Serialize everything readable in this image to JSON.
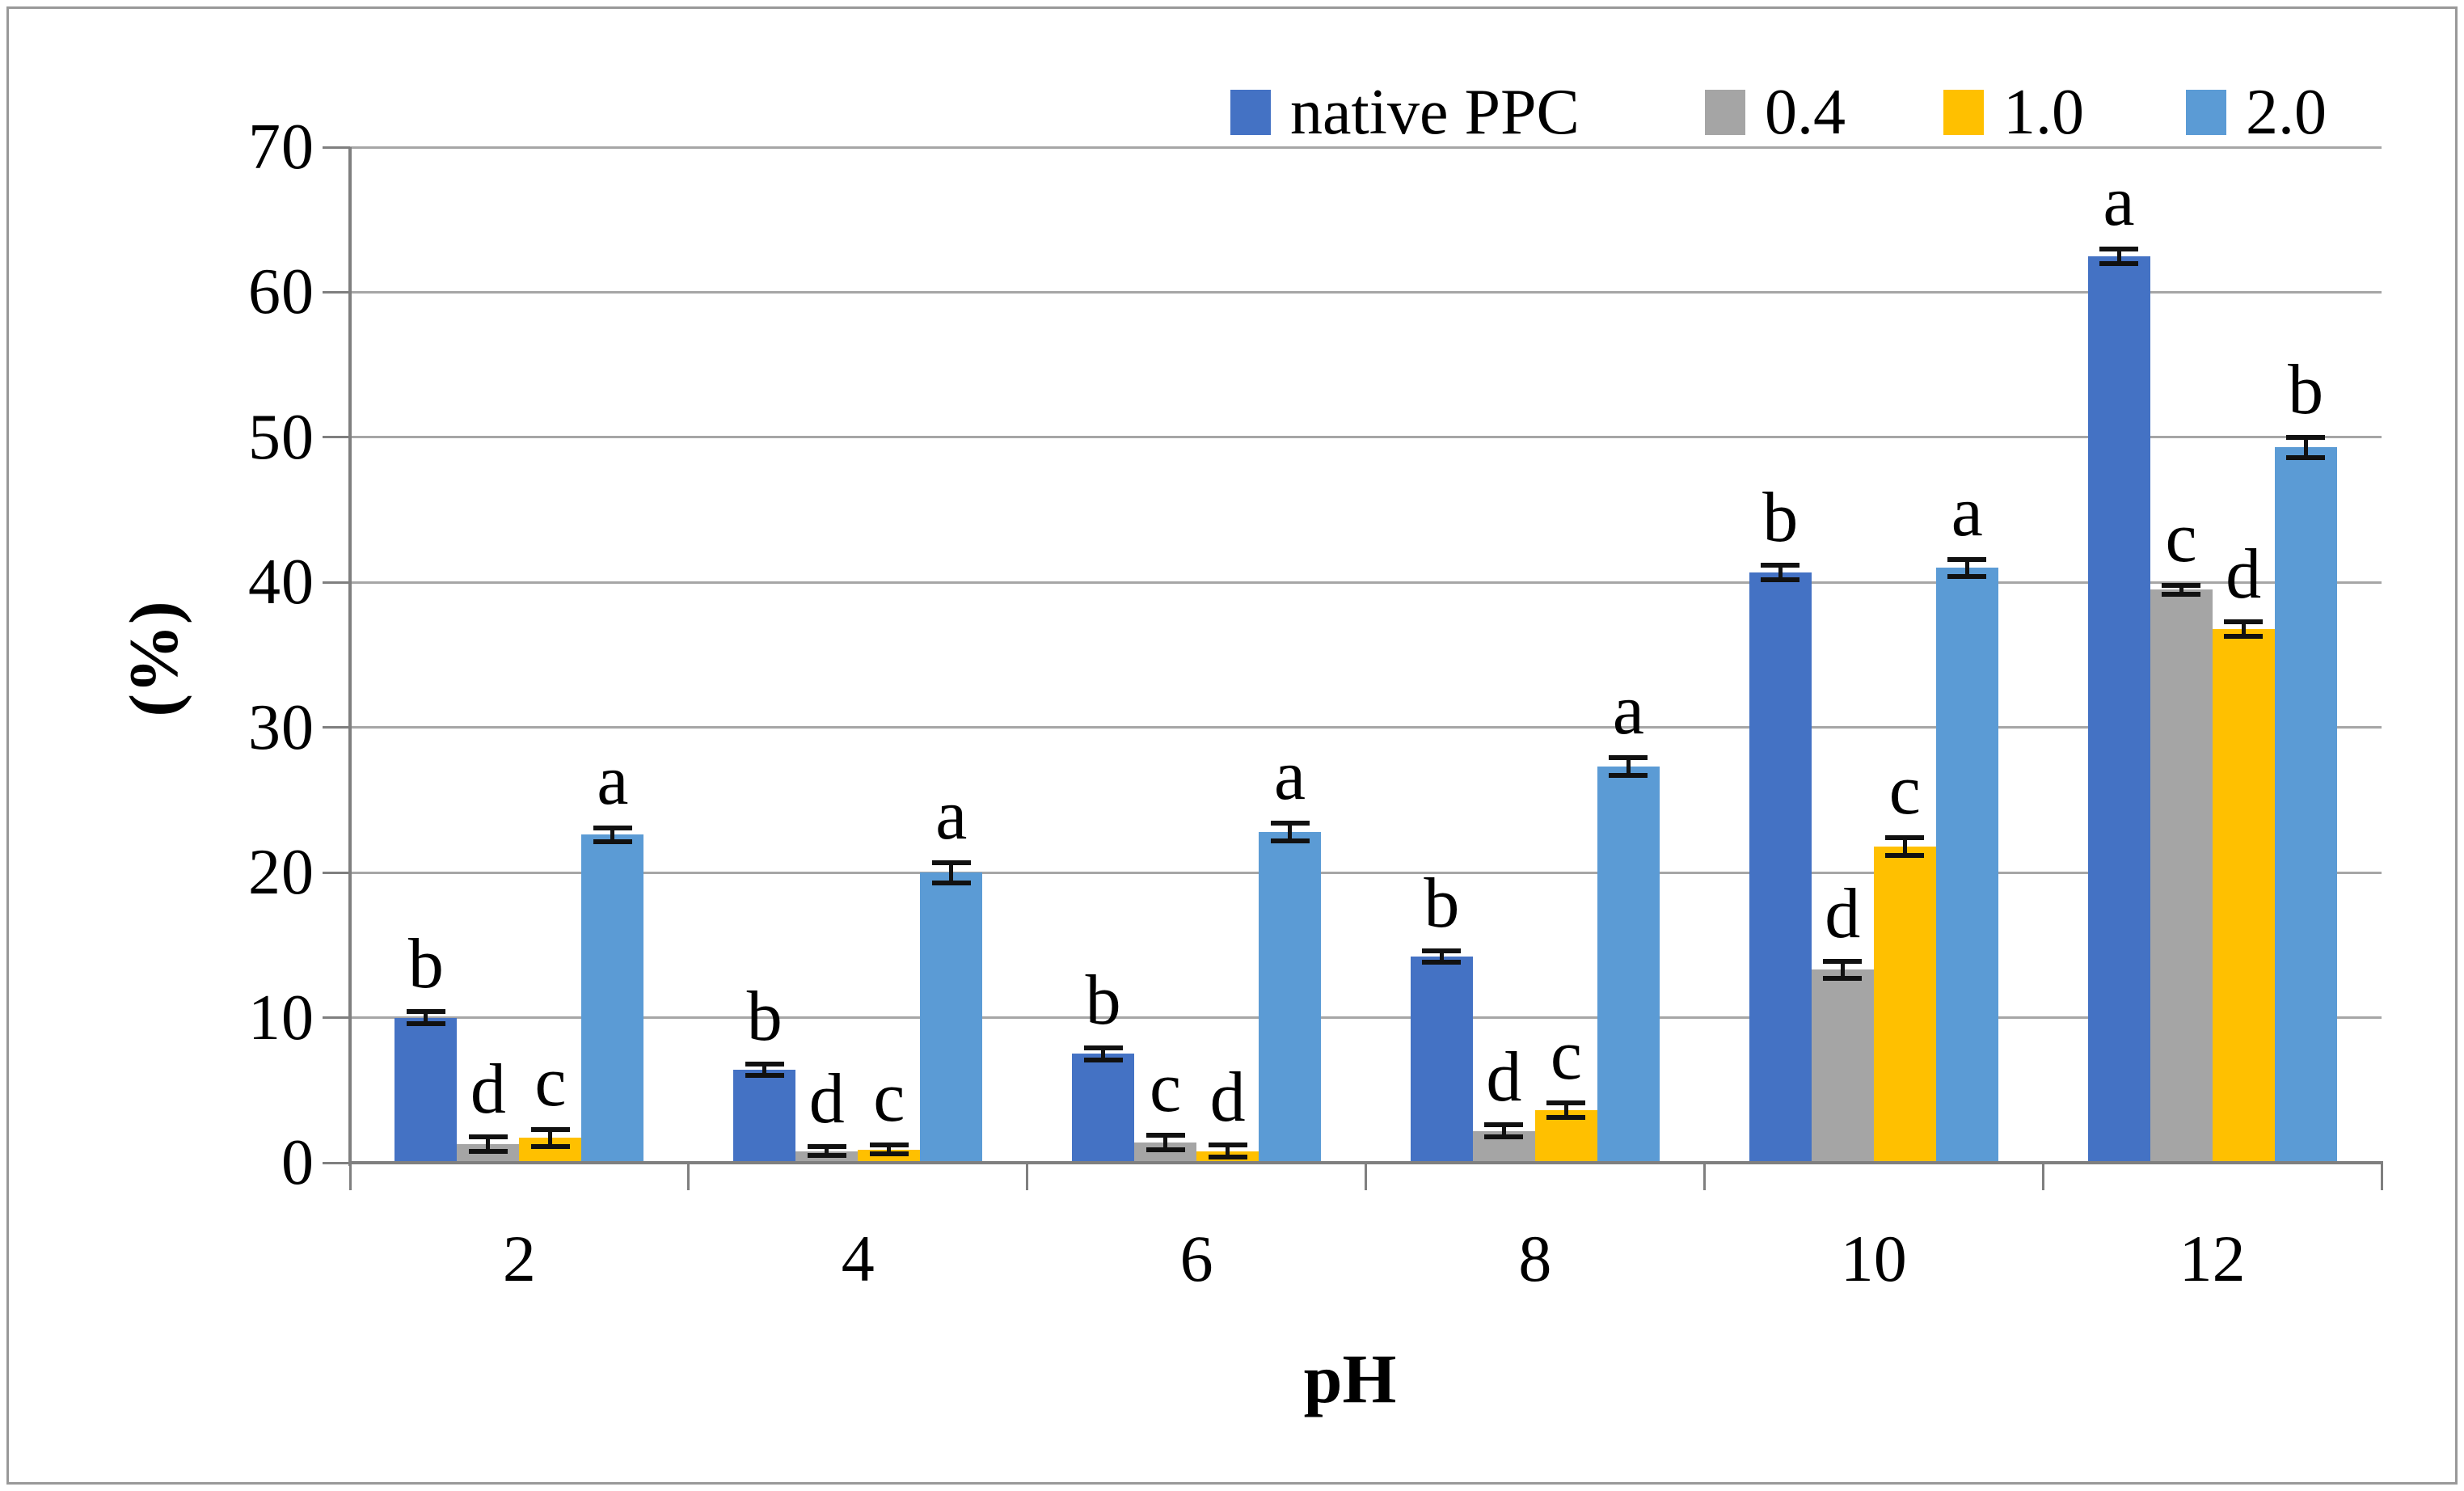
{
  "axes": {
    "ylabel": "(%)",
    "xlabel": "pH",
    "y_ticks": [
      0,
      10,
      20,
      30,
      40,
      50,
      60,
      70
    ],
    "ylim": [
      0,
      70
    ]
  },
  "colors": {
    "grid": "#A6A6A6",
    "axis": "#7F7F7F",
    "frame_border": "#999999",
    "error_bar": "#111111",
    "text": "#000000"
  },
  "chart_data": {
    "type": "bar",
    "title": "",
    "xlabel": "pH",
    "ylabel": "(%)",
    "ylim": [
      0,
      70
    ],
    "grid": "horizontal",
    "legend_position": "top-right",
    "categories": [
      "2",
      "4",
      "6",
      "8",
      "10",
      "12"
    ],
    "series": [
      {
        "name": "native PPC",
        "color": "#4472C4",
        "values": [
          10.0,
          6.4,
          7.5,
          14.2,
          40.7,
          62.5
        ],
        "errors": [
          0.4,
          0.4,
          0.4,
          0.4,
          0.5,
          0.5
        ],
        "letters": [
          "b",
          "b",
          "b",
          "b",
          "b",
          "a"
        ]
      },
      {
        "name": "0.4",
        "color": "#A5A5A5",
        "values": [
          1.3,
          0.8,
          1.4,
          2.2,
          13.3,
          39.5
        ],
        "errors": [
          0.5,
          0.3,
          0.5,
          0.4,
          0.6,
          0.3
        ],
        "letters": [
          "d",
          "d",
          "c",
          "d",
          "d",
          "c"
        ]
      },
      {
        "name": "1.0",
        "color": "#FFC000",
        "values": [
          1.7,
          0.9,
          0.8,
          3.6,
          21.8,
          36.8
        ],
        "errors": [
          0.6,
          0.3,
          0.4,
          0.5,
          0.6,
          0.5
        ],
        "letters": [
          "c",
          "c",
          "d",
          "c",
          "c",
          "d"
        ]
      },
      {
        "name": "2.0",
        "color": "#5B9BD5",
        "values": [
          22.6,
          20.0,
          22.8,
          27.3,
          41.0,
          49.3
        ],
        "errors": [
          0.5,
          0.7,
          0.6,
          0.6,
          0.6,
          0.7
        ],
        "letters": [
          "a",
          "a",
          "a",
          "a",
          "a",
          "b"
        ]
      }
    ]
  }
}
